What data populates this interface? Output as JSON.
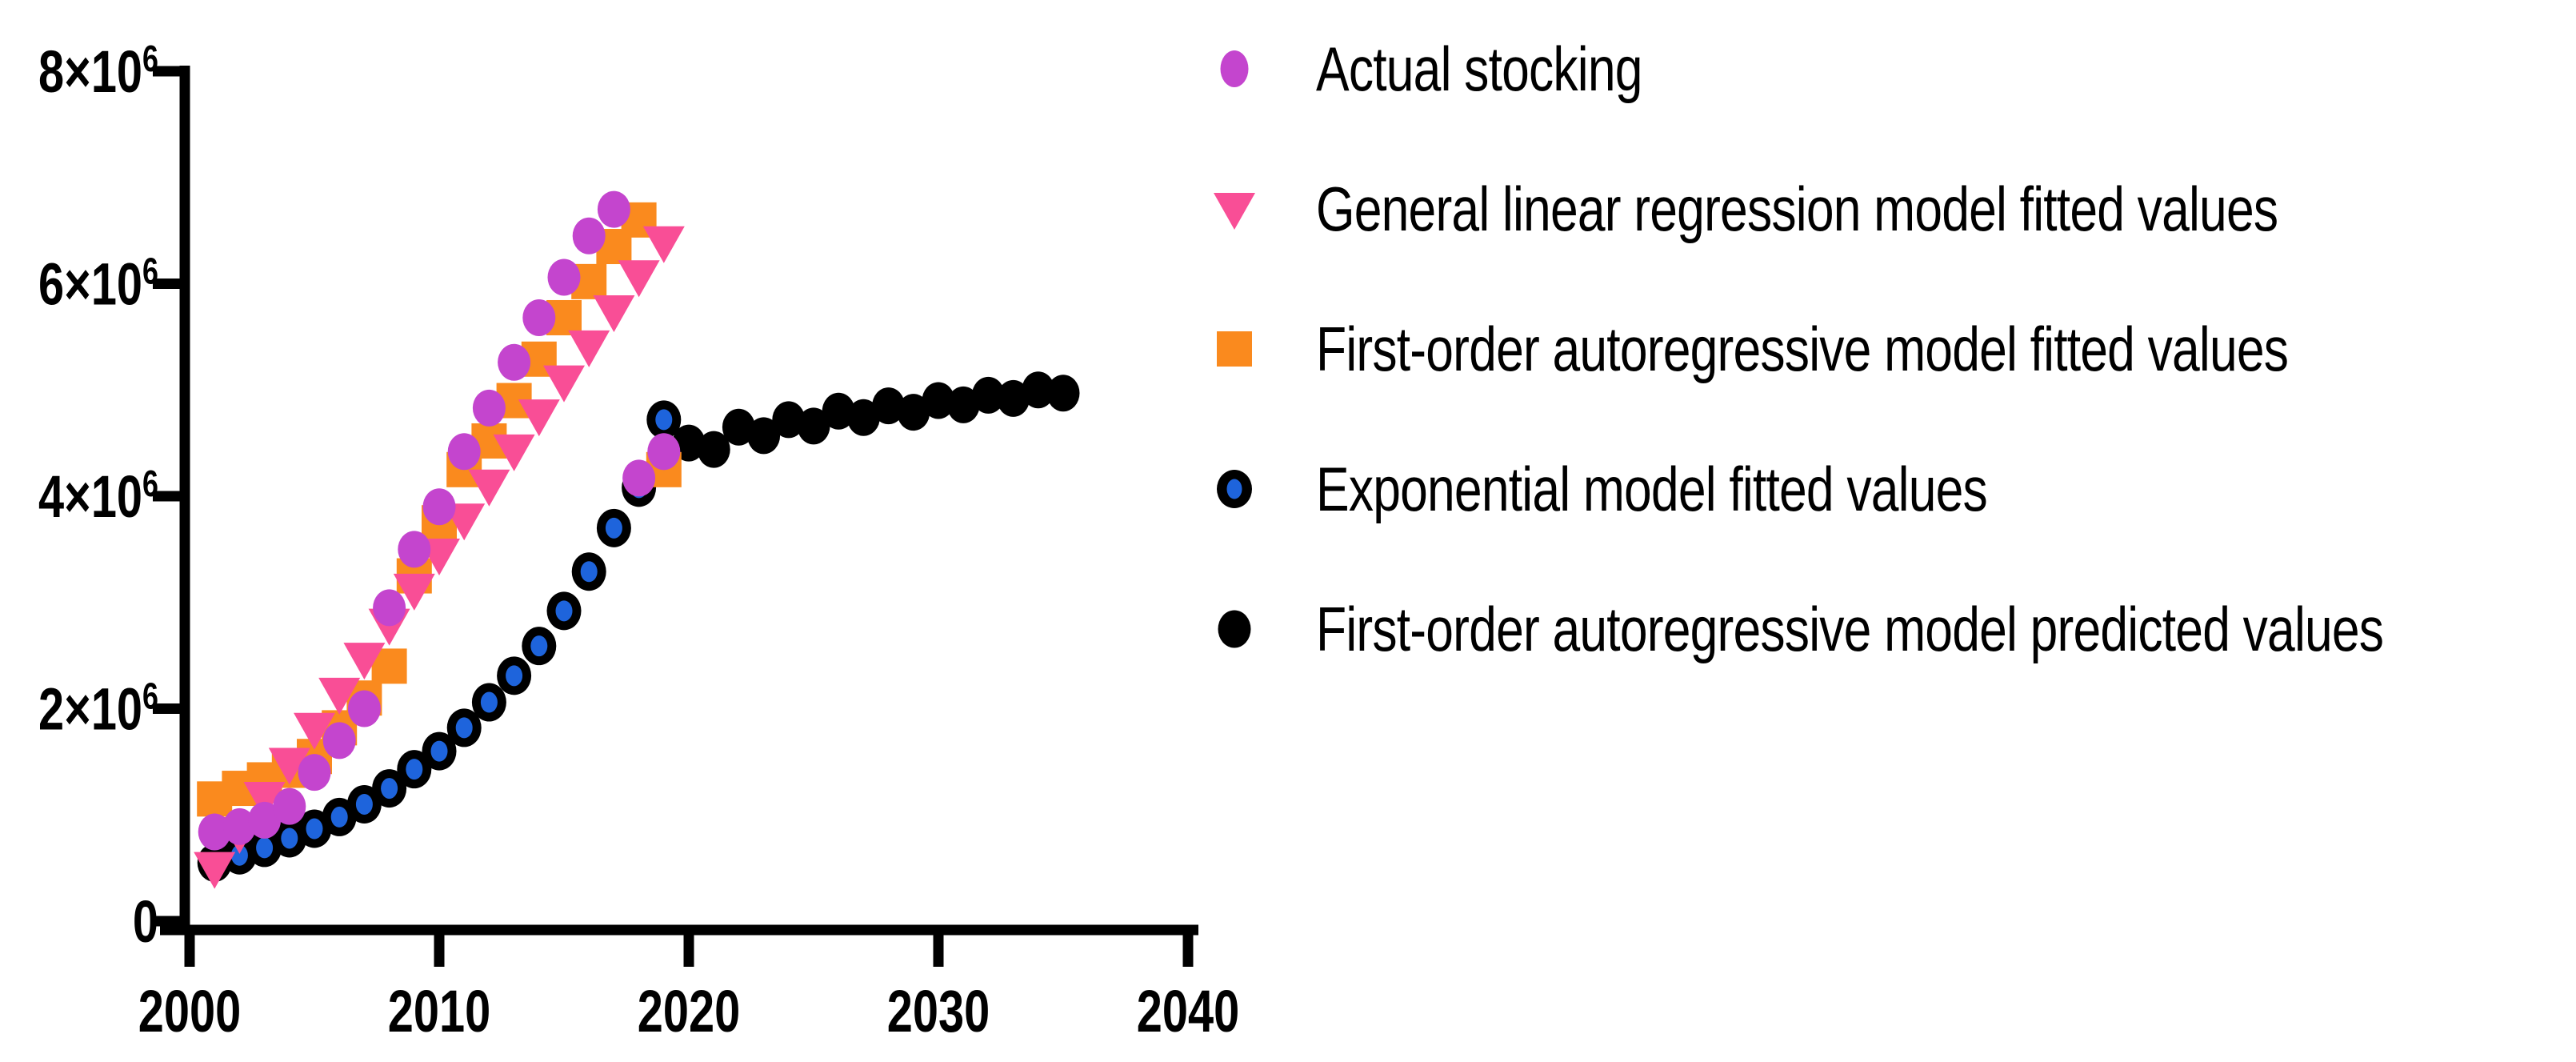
{
  "chart_data": {
    "type": "scatter",
    "title": "",
    "xlabel": "",
    "ylabel": "",
    "xlim": [
      2000,
      2040
    ],
    "ylim": [
      0,
      8000000
    ],
    "grid": false,
    "legend_position": "right-top",
    "background_color": "#FFFFFF",
    "axis_color": "#000000",
    "text_color": "#000000",
    "x_ticks": [
      {
        "value": 2000,
        "label": "2000"
      },
      {
        "value": 2010,
        "label": "2010"
      },
      {
        "value": 2020,
        "label": "2020"
      },
      {
        "value": 2030,
        "label": "2030"
      },
      {
        "value": 2040,
        "label": "2040"
      }
    ],
    "y_ticks": [
      {
        "value": 0,
        "main": "0",
        "sup": ""
      },
      {
        "value": 2000000,
        "main": "2×10",
        "sup": "6"
      },
      {
        "value": 4000000,
        "main": "4×10",
        "sup": "6"
      },
      {
        "value": 6000000,
        "main": "6×10",
        "sup": "6"
      },
      {
        "value": 8000000,
        "main": "8×10",
        "sup": "6"
      }
    ],
    "series": [
      {
        "name": "Actual stocking",
        "marker": "circle",
        "color": "#C445CE",
        "x": [
          2001,
          2002,
          2003,
          2004,
          2005,
          2006,
          2007,
          2008,
          2009,
          2010,
          2011,
          2012,
          2013,
          2014,
          2015,
          2016,
          2017,
          2018,
          2019
        ],
        "y": [
          840000,
          890000,
          950000,
          1080000,
          1400000,
          1700000,
          2000000,
          2950000,
          3500000,
          3900000,
          4420000,
          4830000,
          5260000,
          5680000,
          6060000,
          6450000,
          6700000,
          4170000,
          4420000
        ]
      },
      {
        "name": "General linear regression model fitted values",
        "marker": "triangle-down",
        "color": "#F94E96",
        "x": [
          2001,
          2002,
          2003,
          2004,
          2005,
          2006,
          2007,
          2008,
          2009,
          2010,
          2011,
          2012,
          2013,
          2014,
          2015,
          2016,
          2017,
          2018,
          2019
        ],
        "y": [
          500000,
          830000,
          1160000,
          1480000,
          1810000,
          2140000,
          2470000,
          2790000,
          3120000,
          3450000,
          3780000,
          4100000,
          4430000,
          4760000,
          5080000,
          5410000,
          5740000,
          6070000,
          6390000
        ]
      },
      {
        "name": "First-order autoregressive model fitted values",
        "marker": "square",
        "color": "#FA8A1E",
        "x": [
          2001,
          2002,
          2003,
          2004,
          2005,
          2006,
          2007,
          2008,
          2009,
          2010,
          2011,
          2012,
          2013,
          2014,
          2015,
          2016,
          2017,
          2018,
          2019
        ],
        "y": [
          1150000,
          1250000,
          1330000,
          1420000,
          1550000,
          1820000,
          2100000,
          2400000,
          3250000,
          3750000,
          4250000,
          4520000,
          4900000,
          5290000,
          5680000,
          6020000,
          6350000,
          6600000,
          4250000
        ]
      },
      {
        "name": "Exponential model fitted values",
        "marker": "ring-dot",
        "color": "#000000",
        "inner_color": "#1E64DC",
        "x": [
          2001,
          2002,
          2003,
          2004,
          2005,
          2006,
          2007,
          2008,
          2009,
          2010,
          2011,
          2012,
          2013,
          2014,
          2015,
          2016,
          2017,
          2018,
          2019
        ],
        "y": [
          550000,
          620000,
          690000,
          780000,
          870000,
          980000,
          1100000,
          1250000,
          1430000,
          1600000,
          1820000,
          2060000,
          2310000,
          2590000,
          2920000,
          3290000,
          3700000,
          4080000,
          4720000
        ]
      },
      {
        "name": "First-order autoregressive model predicted values",
        "marker": "circle",
        "color": "#000000",
        "x": [
          2020,
          2021,
          2022,
          2023,
          2024,
          2025,
          2026,
          2027,
          2028,
          2029,
          2030,
          2031,
          2032,
          2033,
          2034,
          2035
        ],
        "y": [
          4500000,
          4440000,
          4650000,
          4570000,
          4720000,
          4660000,
          4800000,
          4740000,
          4850000,
          4790000,
          4900000,
          4860000,
          4950000,
          4920000,
          5000000,
          4970000
        ]
      }
    ]
  }
}
